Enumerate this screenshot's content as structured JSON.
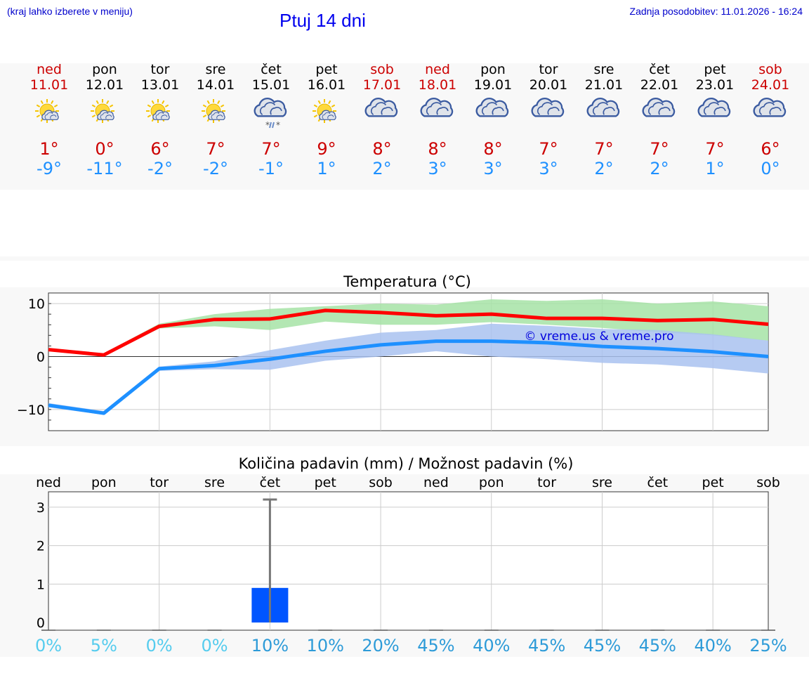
{
  "header": {
    "hint": "(kraj lahko izberete v meniju)",
    "title": "Ptuj 14 dni",
    "updated": "Zadnja posodobitev: 11.01.2026 - 16:24"
  },
  "days": [
    {
      "name": "ned",
      "date": "11.01",
      "weekend": true,
      "icon": "sun-cloud-icon",
      "hi": "1°",
      "lo": "-9°"
    },
    {
      "name": "pon",
      "date": "12.01",
      "weekend": false,
      "icon": "sun-cloud-icon",
      "hi": "0°",
      "lo": "-11°"
    },
    {
      "name": "tor",
      "date": "13.01",
      "weekend": false,
      "icon": "sun-cloud-icon",
      "hi": "6°",
      "lo": "-2°"
    },
    {
      "name": "sre",
      "date": "14.01",
      "weekend": false,
      "icon": "sun-cloud-icon",
      "hi": "7°",
      "lo": "-2°"
    },
    {
      "name": "čet",
      "date": "15.01",
      "weekend": false,
      "icon": "cloud-sleet-icon",
      "hi": "7°",
      "lo": "-1°"
    },
    {
      "name": "pet",
      "date": "16.01",
      "weekend": false,
      "icon": "sun-cloud-icon",
      "hi": "9°",
      "lo": "1°"
    },
    {
      "name": "sob",
      "date": "17.01",
      "weekend": true,
      "icon": "cloudy-icon",
      "hi": "8°",
      "lo": "2°"
    },
    {
      "name": "ned",
      "date": "18.01",
      "weekend": true,
      "icon": "cloudy-icon",
      "hi": "8°",
      "lo": "3°"
    },
    {
      "name": "pon",
      "date": "19.01",
      "weekend": false,
      "icon": "cloudy-icon",
      "hi": "8°",
      "lo": "3°"
    },
    {
      "name": "tor",
      "date": "20.01",
      "weekend": false,
      "icon": "cloudy-icon",
      "hi": "7°",
      "lo": "3°"
    },
    {
      "name": "sre",
      "date": "21.01",
      "weekend": false,
      "icon": "cloudy-icon",
      "hi": "7°",
      "lo": "2°"
    },
    {
      "name": "čet",
      "date": "22.01",
      "weekend": false,
      "icon": "cloudy-icon",
      "hi": "7°",
      "lo": "2°"
    },
    {
      "name": "pet",
      "date": "23.01",
      "weekend": false,
      "icon": "cloudy-icon",
      "hi": "7°",
      "lo": "1°"
    },
    {
      "name": "sob",
      "date": "24.01",
      "weekend": true,
      "icon": "cloudy-icon",
      "hi": "6°",
      "lo": "0°"
    }
  ],
  "colors": {
    "hi": "#cc0000",
    "lo": "#1e90ff",
    "max_line": "#ff0000",
    "min_line": "#1e90ff",
    "max_band": "#a6e3a6",
    "min_band": "#a9c2f0",
    "precip_bar": "#0055ff",
    "chance_low": "#55ccee",
    "chance_high": "#2d9bd8"
  },
  "chart_data": [
    {
      "type": "line",
      "title": "Temperatura (°C)",
      "watermark": "© vreme.us & vreme.pro",
      "ylim": [
        -14,
        12
      ],
      "yticks": [
        -10,
        0,
        10
      ],
      "grid": true,
      "x": [
        "11.01",
        "12.01",
        "13.01",
        "14.01",
        "15.01",
        "16.01",
        "17.01",
        "18.01",
        "19.01",
        "20.01",
        "21.01",
        "22.01",
        "23.01",
        "24.01"
      ],
      "series": [
        {
          "values": [
            1.3,
            0.3,
            5.7,
            7.0,
            7.1,
            8.7,
            8.3,
            7.7,
            8.0,
            7.2,
            7.2,
            6.8,
            7.0,
            6.1
          ],
          "range_low": [
            1.0,
            0.0,
            5.3,
            5.7,
            5.0,
            6.6,
            6.0,
            6.0,
            6.5,
            6.0,
            5.4,
            4.6,
            4.0,
            3.0
          ],
          "range_high": [
            1.6,
            0.6,
            6.2,
            8.0,
            9.0,
            9.5,
            10.0,
            9.8,
            10.8,
            10.5,
            10.8,
            10.0,
            10.4,
            9.5
          ]
        },
        {
          "values": [
            -9.2,
            -10.7,
            -2.3,
            -1.7,
            -0.5,
            1.0,
            2.2,
            2.9,
            2.9,
            2.6,
            1.9,
            1.5,
            0.9,
            0.0
          ],
          "range_low": [
            -9.6,
            -11.0,
            -2.7,
            -2.4,
            -2.5,
            -0.8,
            0.0,
            1.0,
            0.0,
            -0.5,
            -1.2,
            -1.5,
            -2.2,
            -3.2
          ],
          "range_high": [
            -8.8,
            -10.3,
            -1.9,
            -0.9,
            1.2,
            3.0,
            4.5,
            5.0,
            6.2,
            5.8,
            5.2,
            5.0,
            4.2,
            3.0
          ]
        }
      ]
    },
    {
      "type": "bar",
      "title": "Količina padavin (mm) / Možnost padavin (%)",
      "categories": [
        "ned",
        "pon",
        "tor",
        "sre",
        "čet",
        "pet",
        "sob",
        "ned",
        "pon",
        "tor",
        "sre",
        "čet",
        "pet",
        "sob"
      ],
      "values": [
        0,
        0,
        0,
        0,
        0.9,
        0,
        0,
        0,
        0,
        0,
        0,
        0,
        0,
        0
      ],
      "error_high": [
        0,
        0,
        0,
        0,
        3.2,
        0,
        0,
        0,
        0,
        0,
        0,
        0,
        0,
        0
      ],
      "chance": [
        "0%",
        "5%",
        "0%",
        "0%",
        "10%",
        "10%",
        "20%",
        "45%",
        "40%",
        "45%",
        "45%",
        "45%",
        "40%",
        "25%"
      ],
      "ylim": [
        -0.2,
        3.4
      ],
      "yticks": [
        0,
        1,
        2,
        3
      ],
      "grid": true
    }
  ]
}
